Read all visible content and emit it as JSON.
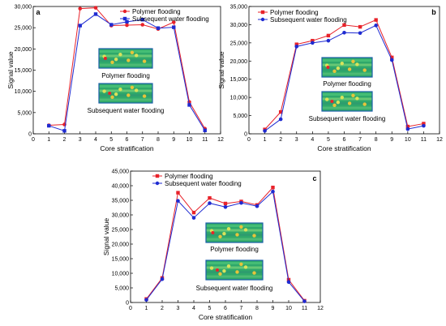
{
  "colors": {
    "polymer": "#e8222a",
    "water": "#1f2bd1"
  },
  "chart_data": [
    {
      "type": "line",
      "panel_label": "a",
      "xlabel": "Core stratification",
      "ylabel": "Signal value",
      "xlim": [
        0,
        12
      ],
      "ylim": [
        0,
        30000
      ],
      "xticks": [
        0,
        1,
        2,
        3,
        4,
        5,
        6,
        7,
        8,
        9,
        10,
        11,
        12
      ],
      "yticks": [
        0,
        5000,
        10000,
        15000,
        20000,
        25000,
        30000
      ],
      "ytick_labels": [
        "0",
        "5,000",
        "10,000",
        "15,000",
        "20,000",
        "25,000",
        "30,000"
      ],
      "legend_position": "top-right",
      "x": [
        1,
        2,
        3,
        4,
        5,
        6,
        7,
        8,
        9,
        10,
        11
      ],
      "series": [
        {
          "name": "Polymer flooding",
          "color": "#e8222a",
          "marker": "circle",
          "values": [
            2000,
            2200,
            29500,
            29700,
            25500,
            25600,
            25700,
            24700,
            26300,
            7500,
            1200
          ]
        },
        {
          "name": "Subsequent water flooding",
          "color": "#1f2bd1",
          "marker": "square",
          "values": [
            1900,
            700,
            25500,
            28200,
            25700,
            26400,
            26900,
            24900,
            25100,
            6800,
            800
          ]
        }
      ],
      "inset_captions": [
        "Polymer flooding",
        "Subsequent water flooding"
      ]
    },
    {
      "type": "line",
      "panel_label": "b",
      "xlabel": "Core stratification",
      "ylabel": "Signal value",
      "xlim": [
        0,
        12
      ],
      "ylim": [
        0,
        35000
      ],
      "xticks": [
        0,
        1,
        2,
        3,
        4,
        5,
        6,
        7,
        8,
        9,
        10,
        11,
        12
      ],
      "yticks": [
        0,
        5000,
        10000,
        15000,
        20000,
        25000,
        30000,
        35000
      ],
      "ytick_labels": [
        "0",
        "5,000",
        "10,000",
        "15,000",
        "20,000",
        "25,000",
        "30,000",
        "35,000"
      ],
      "legend_position": "top-left",
      "x": [
        1,
        2,
        3,
        4,
        5,
        6,
        7,
        8,
        9,
        10,
        11
      ],
      "series": [
        {
          "name": "Polymer flooding",
          "color": "#e8222a",
          "marker": "square",
          "values": [
            1200,
            6000,
            24600,
            25600,
            27000,
            29900,
            29400,
            31300,
            21000,
            2000,
            2800
          ]
        },
        {
          "name": "Subsequent water flooding",
          "color": "#1f2bd1",
          "marker": "circle",
          "values": [
            800,
            4000,
            24000,
            25000,
            25600,
            27800,
            27700,
            29800,
            20300,
            1300,
            2200
          ]
        }
      ],
      "inset_captions": [
        "Polymer flooding",
        "Subsequent water flooding"
      ]
    },
    {
      "type": "line",
      "panel_label": "c",
      "xlabel": "Core stratification",
      "ylabel": "Signal value",
      "xlim": [
        0,
        12
      ],
      "ylim": [
        0,
        45000
      ],
      "xticks": [
        0,
        1,
        2,
        3,
        4,
        5,
        6,
        7,
        8,
        9,
        10,
        11,
        12
      ],
      "yticks": [
        0,
        5000,
        10000,
        15000,
        20000,
        25000,
        30000,
        35000,
        40000,
        45000
      ],
      "ytick_labels": [
        "0",
        "5,000",
        "10,000",
        "15,000",
        "20,000",
        "25,000",
        "30,000",
        "35,000",
        "40,000",
        "45,000"
      ],
      "legend_position": "top-left",
      "x": [
        1,
        2,
        3,
        4,
        5,
        6,
        7,
        8,
        9,
        10,
        11
      ],
      "series": [
        {
          "name": "Polymer flooding",
          "color": "#e8222a",
          "marker": "square",
          "values": [
            1200,
            8400,
            37600,
            30800,
            35800,
            33900,
            34600,
            33400,
            39400,
            7800,
            600
          ]
        },
        {
          "name": "Subsequent water flooding",
          "color": "#1f2bd1",
          "marker": "circle",
          "values": [
            900,
            8000,
            34800,
            29000,
            34000,
            32700,
            34100,
            33000,
            38000,
            7000,
            400
          ]
        }
      ],
      "inset_captions": [
        "Polymer flooding",
        "Subsequent water flooding"
      ]
    }
  ]
}
